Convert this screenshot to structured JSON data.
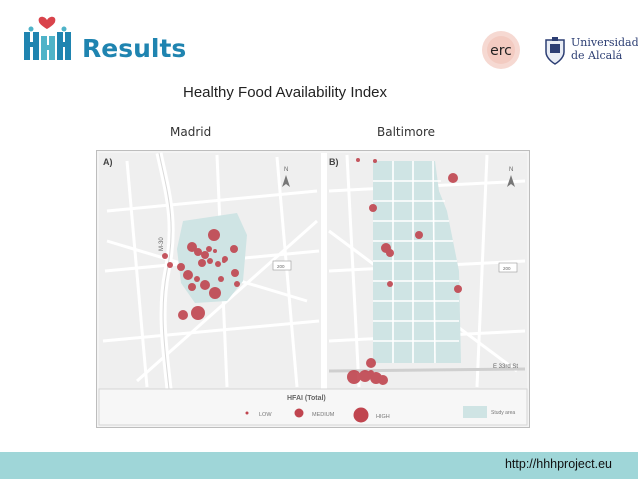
{
  "header": {
    "title": "Results",
    "erc_logo": "erc",
    "university_logo": "Universidad de Alcalá"
  },
  "figure": {
    "title": "Healthy Food Availability Index",
    "cities": [
      "Madrid",
      "Baltimore"
    ],
    "panel_a": {
      "label": "A)",
      "road_label": "M-30"
    },
    "panel_b": {
      "label": "B)",
      "road_label": "E 33rd St"
    },
    "scale_label": "200",
    "north_label": "N",
    "legend": {
      "title": "HFAI (Total)",
      "items": [
        "LOW",
        "MEDIUM",
        "HIGH"
      ],
      "study_area": "Study area"
    },
    "colors": {
      "points": "#c0454f",
      "study_area": "#cfe4e4",
      "header": "#1f84b0",
      "footer": "#9fd6d8"
    }
  },
  "footer": {
    "url": "http://hhhproject.eu"
  }
}
